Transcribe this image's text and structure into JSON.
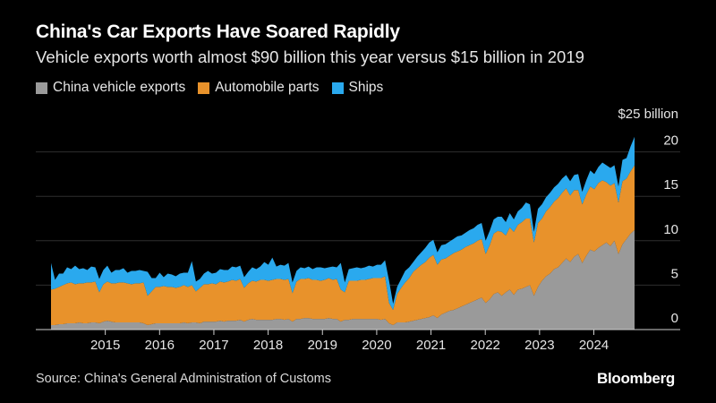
{
  "chart_data": {
    "type": "area",
    "stacked": true,
    "title": "China's Car Exports Have Soared Rapidly",
    "subtitle": "Vehicle exports worth almost $90 billion this year versus $15 billion in 2019",
    "unit_label": "$25 billion",
    "ylim": [
      0,
      25
    ],
    "yticks": [
      0,
      5,
      10,
      15,
      20
    ],
    "x_start": 2014.0,
    "x_end": 2024.75,
    "xticks": [
      "2015",
      "2016",
      "2017",
      "2018",
      "2019",
      "2020",
      "2021",
      "2022",
      "2023",
      "2024"
    ],
    "series": [
      {
        "name": "China vehicle exports",
        "color": "#9a9a9a",
        "values": [
          0.5,
          0.5,
          0.6,
          0.6,
          0.7,
          0.7,
          0.7,
          0.8,
          0.7,
          0.7,
          0.8,
          0.8,
          0.7,
          0.9,
          1.0,
          0.9,
          0.8,
          0.8,
          0.8,
          0.8,
          0.8,
          0.8,
          0.8,
          0.7,
          0.5,
          0.6,
          0.7,
          0.7,
          0.7,
          0.7,
          0.7,
          0.7,
          0.7,
          0.8,
          0.7,
          0.8,
          0.8,
          0.7,
          0.9,
          0.9,
          0.9,
          0.9,
          1.0,
          0.9,
          1.0,
          1.0,
          1.0,
          1.1,
          0.9,
          1.1,
          1.2,
          1.1,
          1.1,
          1.1,
          1.1,
          1.1,
          1.2,
          1.2,
          1.1,
          1.2,
          0.9,
          1.2,
          1.2,
          1.3,
          1.3,
          1.2,
          1.2,
          1.2,
          1.2,
          1.3,
          1.2,
          1.2,
          0.9,
          1.1,
          1.1,
          1.2,
          1.2,
          1.2,
          1.2,
          1.2,
          1.2,
          1.2,
          1.1,
          1.2,
          0.7,
          0.5,
          0.8,
          0.8,
          0.8,
          0.9,
          1.0,
          1.1,
          1.2,
          1.3,
          1.4,
          1.6,
          1.3,
          1.7,
          1.9,
          2.1,
          2.2,
          2.4,
          2.6,
          2.8,
          3.0,
          3.2,
          3.4,
          3.6,
          3.0,
          3.4,
          4.0,
          4.2,
          3.8,
          4.2,
          4.5,
          3.9,
          4.5,
          4.6,
          4.8,
          5.0,
          3.8,
          4.8,
          5.5,
          6.0,
          6.3,
          6.8,
          7.0,
          7.5,
          8.0,
          7.6,
          8.2,
          8.5,
          7.5,
          8.3,
          9.0,
          8.8,
          9.2,
          9.5,
          9.8,
          9.4,
          10.0,
          8.5,
          9.6,
          10.2,
          10.8,
          11.2
        ]
      },
      {
        "name": "Automobile parts",
        "color": "#e8922b",
        "values": [
          4.0,
          4.1,
          4.2,
          4.4,
          4.5,
          4.6,
          4.4,
          4.4,
          4.5,
          4.6,
          4.5,
          4.6,
          3.5,
          4.2,
          4.4,
          4.3,
          4.4,
          4.5,
          4.5,
          4.4,
          4.3,
          4.4,
          4.4,
          4.6,
          3.3,
          3.7,
          4.1,
          4.1,
          4.2,
          4.1,
          4.1,
          4.0,
          4.1,
          4.2,
          4.1,
          4.2,
          3.5,
          4.0,
          4.2,
          4.2,
          4.3,
          4.2,
          4.4,
          4.4,
          4.4,
          4.6,
          4.5,
          4.6,
          3.8,
          4.1,
          4.3,
          4.3,
          4.5,
          4.5,
          4.4,
          4.5,
          4.5,
          4.5,
          4.5,
          4.5,
          3.2,
          4.2,
          4.5,
          4.4,
          4.5,
          4.4,
          4.4,
          4.3,
          4.4,
          4.5,
          4.4,
          4.5,
          3.6,
          3.1,
          4.4,
          4.3,
          4.3,
          4.4,
          4.4,
          4.5,
          4.6,
          4.6,
          4.7,
          4.8,
          2.3,
          1.7,
          3.2,
          3.9,
          4.5,
          4.9,
          5.5,
          5.8,
          6.1,
          6.3,
          6.7,
          6.8,
          6.0,
          6.2,
          6.1,
          6.2,
          6.4,
          6.4,
          6.4,
          6.5,
          6.5,
          6.5,
          6.6,
          6.6,
          5.5,
          6.1,
          6.8,
          6.9,
          7.2,
          6.4,
          7.0,
          7.1,
          7.3,
          7.5,
          7.7,
          7.5,
          6.0,
          7.2,
          7.0,
          7.3,
          7.5,
          7.6,
          7.8,
          7.9,
          7.9,
          7.5,
          7.5,
          7.2,
          6.6,
          6.9,
          7.1,
          7.0,
          7.3,
          7.3,
          6.8,
          6.8,
          6.5,
          5.8,
          7.1,
          6.8,
          7.0,
          7.3
        ]
      },
      {
        "name": "Ships",
        "color": "#2aa9ee",
        "values": [
          3.0,
          1.0,
          1.5,
          1.3,
          1.8,
          1.5,
          2.1,
          1.6,
          1.7,
          1.4,
          1.8,
          1.6,
          1.5,
          1.6,
          1.8,
          1.2,
          1.5,
          1.4,
          1.6,
          1.2,
          1.5,
          1.4,
          1.5,
          1.3,
          2.7,
          1.5,
          1.0,
          1.6,
          1.0,
          1.5,
          1.4,
          1.3,
          1.5,
          1.4,
          1.6,
          2.7,
          1.1,
          1.0,
          1.2,
          1.5,
          1.1,
          1.3,
          1.4,
          1.4,
          1.3,
          1.5,
          1.5,
          1.5,
          1.2,
          1.3,
          1.5,
          1.4,
          1.5,
          2.0,
          1.8,
          2.5,
          1.4,
          1.6,
          1.6,
          1.8,
          1.2,
          1.2,
          1.3,
          1.2,
          1.3,
          1.2,
          1.4,
          1.5,
          1.3,
          1.2,
          1.5,
          1.3,
          3.0,
          1.1,
          1.3,
          1.4,
          1.5,
          1.3,
          1.4,
          1.5,
          1.3,
          1.5,
          1.5,
          1.8,
          2.5,
          0.7,
          0.8,
          1.0,
          1.3,
          1.2,
          1.1,
          1.3,
          1.4,
          1.6,
          1.7,
          1.7,
          1.4,
          1.6,
          1.6,
          1.6,
          1.6,
          1.7,
          1.6,
          1.6,
          1.7,
          1.7,
          1.8,
          1.8,
          1.5,
          1.6,
          1.6,
          1.6,
          1.7,
          1.5,
          1.6,
          1.4,
          1.5,
          1.6,
          1.8,
          1.6,
          1.2,
          1.6,
          1.6,
          1.6,
          1.6,
          1.6,
          1.6,
          1.6,
          1.5,
          1.6,
          1.7,
          1.8,
          1.4,
          1.6,
          1.8,
          1.7,
          1.8,
          2.0,
          1.9,
          2.0,
          2.0,
          1.8,
          2.4,
          2.3,
          2.8,
          3.2
        ]
      }
    ]
  },
  "source": "Source: China's General Administration of Customs",
  "brand": "Bloomberg"
}
